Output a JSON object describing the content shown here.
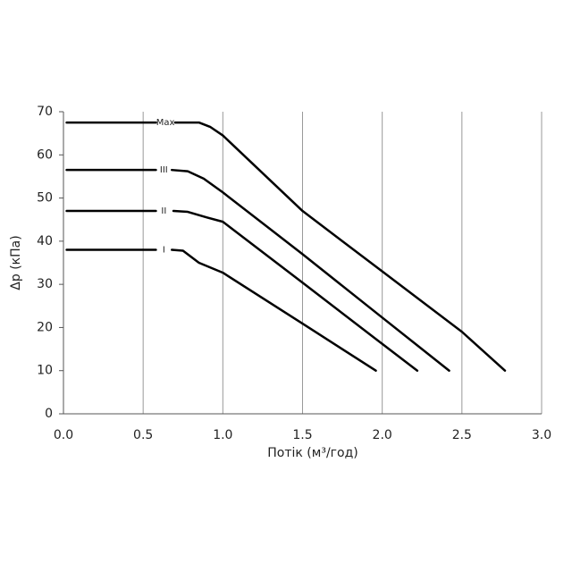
{
  "chart_data": {
    "type": "line",
    "xlabel": "Потік (м³/год)",
    "ylabel": "Δp (кПа)",
    "xlim": [
      0,
      3
    ],
    "ylim": [
      0,
      70
    ],
    "xticks": [
      {
        "value": 0,
        "label": "0.0"
      },
      {
        "value": 0.5,
        "label": "0.5"
      },
      {
        "value": 1,
        "label": "1.0"
      },
      {
        "value": 1.5,
        "label": "1.5"
      },
      {
        "value": 2,
        "label": "2.0"
      },
      {
        "value": 2.5,
        "label": "2.5"
      },
      {
        "value": 3,
        "label": "3.0"
      }
    ],
    "yticks": [
      0,
      10,
      20,
      30,
      40,
      50,
      60,
      70
    ],
    "grid": "x",
    "series": [
      {
        "name": "Max",
        "color": "#000000",
        "x": [
          0.02,
          0.58,
          0.64,
          0.7,
          0.85,
          0.92,
          1.0,
          1.5,
          2.0,
          2.5,
          2.77
        ],
        "values": [
          67.5,
          67.5,
          null,
          67.5,
          67.5,
          66.5,
          64.5,
          47,
          33,
          19,
          10
        ]
      },
      {
        "name": "III",
        "color": "#000000",
        "x": [
          0.02,
          0.58,
          0.63,
          0.68,
          0.78,
          0.88,
          1.0,
          1.5,
          2.0,
          2.42
        ],
        "values": [
          56.5,
          56.5,
          null,
          56.5,
          56.2,
          54.5,
          51.3,
          37,
          22.3,
          10
        ]
      },
      {
        "name": "II",
        "color": "#000000",
        "x": [
          0.02,
          0.58,
          0.63,
          0.69,
          0.78,
          0.9,
          1.0,
          1.5,
          2.0,
          2.22
        ],
        "values": [
          47,
          47,
          null,
          47,
          46.8,
          45.5,
          44.5,
          30.4,
          16.2,
          10
        ]
      },
      {
        "name": "I",
        "color": "#000000",
        "x": [
          0.02,
          0.58,
          0.63,
          0.68,
          0.75,
          0.85,
          1.0,
          1.5,
          1.96
        ],
        "values": [
          38,
          38,
          null,
          38,
          37.8,
          35,
          32.7,
          20.9,
          10
        ]
      }
    ]
  }
}
